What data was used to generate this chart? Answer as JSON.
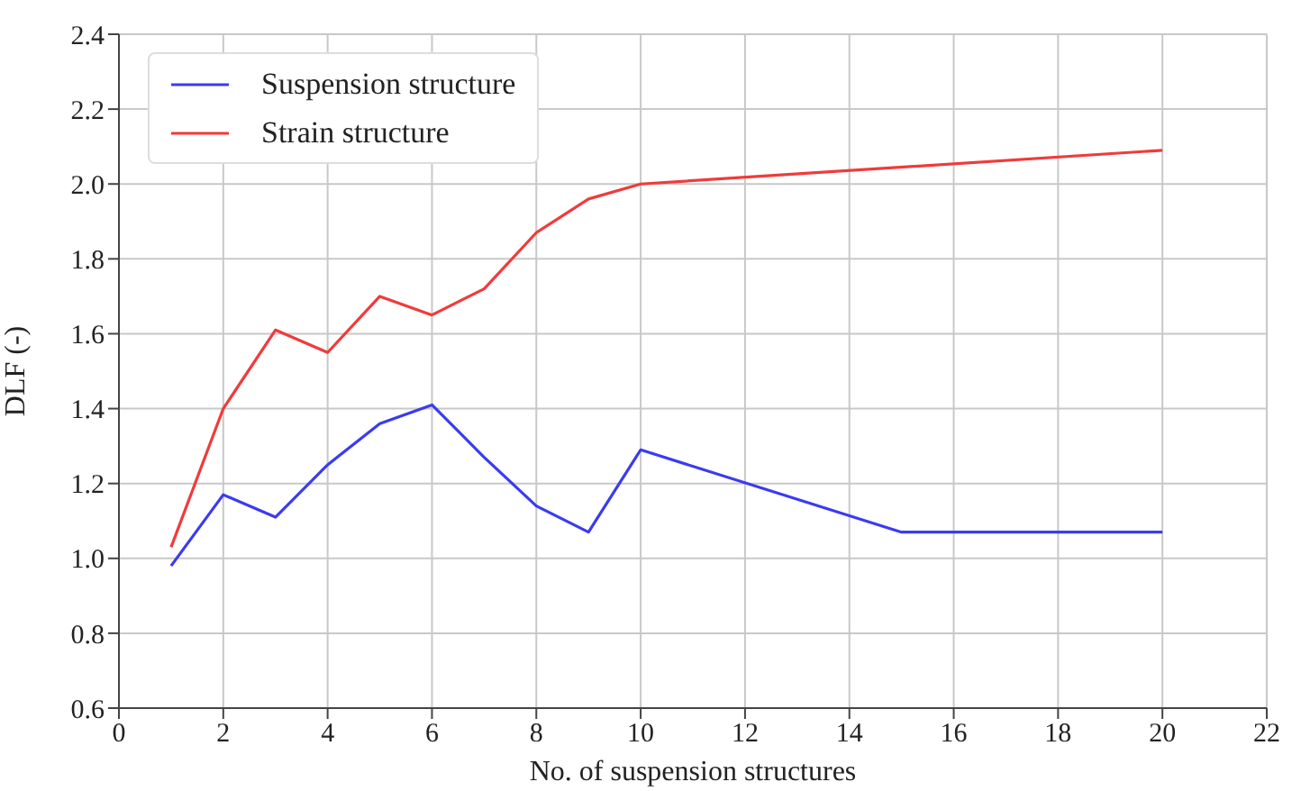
{
  "chart_data": {
    "type": "line",
    "xlabel": "No. of suspension structures",
    "ylabel": "DLF (-)",
    "xlim": [
      0,
      22
    ],
    "xticks": [
      0,
      2,
      4,
      6,
      8,
      10,
      12,
      14,
      16,
      18,
      20,
      22
    ],
    "ylim": [
      0.6,
      2.4
    ],
    "yticks": [
      0.6,
      0.8,
      {
        "value": 1,
        "label": "1.0"
      },
      1.2,
      1.4,
      1.6,
      1.8,
      {
        "value": 2,
        "label": "2.0"
      },
      2.2,
      2.4
    ],
    "grid": true,
    "legend": "top left",
    "series": [
      {
        "name": "Suspension structure",
        "color": "#3b3bf0",
        "x": [
          1,
          2,
          3,
          4,
          5,
          6,
          7,
          8,
          9,
          10,
          15,
          20
        ],
        "values": [
          0.98,
          1.17,
          1.11,
          1.25,
          1.36,
          1.41,
          1.27,
          1.14,
          1.07,
          1.29,
          1.07,
          1.07
        ]
      },
      {
        "name": "Strain structure",
        "color": "#f03b3b",
        "x": [
          1,
          2,
          3,
          4,
          5,
          6,
          7,
          8,
          9,
          10,
          20
        ],
        "values": [
          1.03,
          1.4,
          1.61,
          1.55,
          1.7,
          1.65,
          1.72,
          1.87,
          1.96,
          2.0,
          2.09
        ]
      }
    ]
  }
}
